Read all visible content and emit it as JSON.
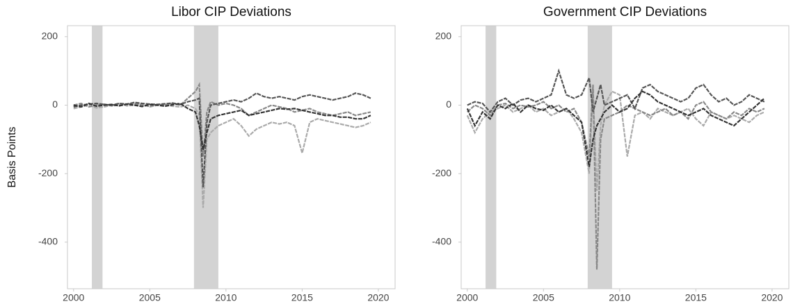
{
  "chart_data": [
    {
      "type": "line",
      "title": "Libor CIP Deviations",
      "y_label": "Basis Points",
      "xlim": [
        1999.6,
        2021.1
      ],
      "ylim": [
        -536,
        232
      ],
      "xticks": [
        2000,
        2005,
        2010,
        2015,
        2020
      ],
      "yticks": [
        -400,
        -200,
        0,
        200
      ],
      "shaded_regions": [
        [
          2001.2,
          2001.9
        ],
        [
          2007.9,
          2009.5
        ]
      ],
      "shade_color": "#d3d3d3",
      "x": [
        2000,
        2000.5,
        2001,
        2001.5,
        2002,
        2002.5,
        2003,
        2003.5,
        2004,
        2004.5,
        2005,
        2005.5,
        2006,
        2006.5,
        2007,
        2007.5,
        2008,
        2008.25,
        2008.5,
        2008.75,
        2009,
        2009.5,
        2010,
        2010.5,
        2011,
        2011.5,
        2012,
        2012.5,
        2013,
        2013.5,
        2014,
        2014.5,
        2015,
        2015.5,
        2016,
        2016.5,
        2017,
        2017.5,
        2018,
        2018.5,
        2019,
        2019.5
      ],
      "series": [
        {
          "color": "#aaaaaa",
          "values": [
            -10,
            -5,
            0,
            -8,
            -5,
            0,
            5,
            -2,
            0,
            3,
            -5,
            0,
            2,
            -3,
            -5,
            0,
            -10,
            -30,
            -300,
            -100,
            -80,
            -60,
            -50,
            -40,
            -60,
            -90,
            -70,
            -60,
            -50,
            -55,
            -50,
            -60,
            -140,
            -50,
            -40,
            -45,
            -50,
            -55,
            -60,
            -65,
            -60,
            -50
          ]
        },
        {
          "color": "#888888",
          "values": [
            0,
            5,
            -5,
            0,
            3,
            -2,
            0,
            2,
            5,
            0,
            -3,
            2,
            0,
            5,
            0,
            20,
            40,
            60,
            -150,
            -20,
            10,
            0,
            5,
            0,
            -10,
            -30,
            -20,
            -10,
            0,
            -5,
            -10,
            -20,
            -15,
            -10,
            -20,
            -25,
            -30,
            -25,
            -20,
            -30,
            -25,
            -20
          ]
        },
        {
          "color": "#555555",
          "values": [
            -5,
            0,
            3,
            5,
            2,
            0,
            5,
            3,
            8,
            5,
            3,
            2,
            4,
            6,
            2,
            10,
            15,
            20,
            -240,
            -50,
            0,
            5,
            10,
            15,
            10,
            20,
            35,
            25,
            20,
            25,
            20,
            15,
            25,
            30,
            25,
            20,
            15,
            20,
            25,
            35,
            30,
            20
          ]
        },
        {
          "color": "#333333",
          "values": [
            0,
            -5,
            5,
            -3,
            0,
            2,
            -2,
            3,
            0,
            -4,
            2,
            0,
            -3,
            1,
            5,
            -10,
            -20,
            -60,
            -130,
            -80,
            -40,
            -30,
            -25,
            -20,
            -15,
            -30,
            -25,
            -20,
            -15,
            -10,
            -12,
            -10,
            -15,
            -20,
            -25,
            -30,
            -30,
            -35,
            -35,
            -40,
            -40,
            -30
          ]
        }
      ]
    },
    {
      "type": "line",
      "title": "Government CIP Deviations",
      "xlim": [
        1999.6,
        2021.1
      ],
      "ylim": [
        -536,
        232
      ],
      "xticks": [
        2000,
        2005,
        2010,
        2015,
        2020
      ],
      "yticks": [
        -400,
        -200,
        0,
        200
      ],
      "shaded_regions": [
        [
          2001.2,
          2001.9
        ],
        [
          2007.9,
          2009.5
        ]
      ],
      "shade_color": "#d3d3d3",
      "x": [
        2000,
        2000.5,
        2001,
        2001.5,
        2002,
        2002.5,
        2003,
        2003.5,
        2004,
        2004.5,
        2005,
        2005.5,
        2006,
        2006.5,
        2007,
        2007.5,
        2008,
        2008.25,
        2008.5,
        2008.75,
        2009,
        2009.5,
        2010,
        2010.5,
        2011,
        2011.5,
        2012,
        2012.5,
        2013,
        2013.5,
        2014,
        2014.5,
        2015,
        2015.5,
        2016,
        2016.5,
        2017,
        2017.5,
        2018,
        2018.5,
        2019,
        2019.5
      ],
      "series": [
        {
          "color": "#aaaaaa",
          "values": [
            -30,
            -80,
            -40,
            -20,
            -10,
            0,
            -20,
            -10,
            0,
            -20,
            -10,
            -30,
            -20,
            -10,
            -40,
            -80,
            -200,
            50,
            -250,
            -60,
            0,
            40,
            30,
            -150,
            -30,
            -20,
            -40,
            -10,
            -20,
            -30,
            -20,
            -10,
            -40,
            -60,
            -20,
            -30,
            -40,
            -30,
            -40,
            -50,
            -30,
            -20
          ]
        },
        {
          "color": "#888888",
          "values": [
            -20,
            0,
            -10,
            -30,
            0,
            5,
            -10,
            0,
            -5,
            0,
            10,
            -10,
            0,
            -20,
            -10,
            -50,
            -150,
            60,
            -480,
            -100,
            -40,
            -30,
            -20,
            0,
            -10,
            -20,
            -30,
            -20,
            -10,
            -30,
            -20,
            -40,
            0,
            10,
            -20,
            -30,
            -40,
            -20,
            -30,
            -10,
            -20,
            -10
          ]
        },
        {
          "color": "#555555",
          "values": [
            0,
            10,
            5,
            -20,
            10,
            20,
            0,
            15,
            20,
            10,
            20,
            30,
            100,
            30,
            20,
            30,
            80,
            -20,
            20,
            60,
            0,
            10,
            20,
            30,
            -10,
            50,
            60,
            40,
            30,
            20,
            10,
            20,
            50,
            60,
            30,
            10,
            20,
            0,
            10,
            30,
            20,
            10
          ]
        },
        {
          "color": "#333333",
          "values": [
            -10,
            -60,
            -20,
            -40,
            0,
            -10,
            5,
            -20,
            0,
            -10,
            -15,
            0,
            -20,
            -10,
            -30,
            -50,
            -180,
            -100,
            -60,
            -40,
            -20,
            0,
            -20,
            -10,
            20,
            40,
            30,
            10,
            0,
            -10,
            -20,
            -30,
            -20,
            -10,
            -30,
            -40,
            -50,
            -60,
            -40,
            -20,
            0,
            20
          ]
        }
      ]
    }
  ]
}
